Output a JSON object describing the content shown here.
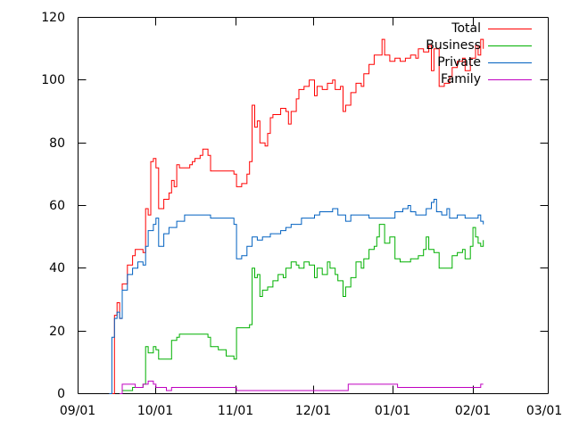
{
  "chart_data": {
    "type": "line",
    "title": "",
    "xlabel": "",
    "ylabel": "",
    "x_ticks": [
      "09/01",
      "10/01",
      "11/01",
      "12/01",
      "01/01",
      "02/01",
      "03/01"
    ],
    "x_tick_dates": [
      "2008-09-01",
      "2008-10-01",
      "2008-11-01",
      "2008-12-01",
      "2009-01-01",
      "2009-02-01",
      "2009-03-01"
    ],
    "xlim": [
      "2008-09-01",
      "2009-03-01"
    ],
    "ylim": [
      0,
      120
    ],
    "y_ticks": [
      0,
      20,
      40,
      60,
      80,
      100,
      120
    ],
    "grid": false,
    "legend_position": "top-right",
    "series": [
      {
        "name": "Total",
        "color": "#ff0000",
        "points": [
          [
            "2008-09-13",
            0
          ],
          [
            "2008-09-15",
            25
          ],
          [
            "2008-09-16",
            29
          ],
          [
            "2008-09-17",
            24
          ],
          [
            "2008-09-18",
            35
          ],
          [
            "2008-09-20",
            41
          ],
          [
            "2008-09-22",
            44
          ],
          [
            "2008-09-23",
            46
          ],
          [
            "2008-09-26",
            45
          ],
          [
            "2008-09-27",
            59
          ],
          [
            "2008-09-28",
            57
          ],
          [
            "2008-09-29",
            74
          ],
          [
            "2008-09-30",
            75
          ],
          [
            "2008-10-01",
            72
          ],
          [
            "2008-10-02",
            59
          ],
          [
            "2008-10-04",
            62
          ],
          [
            "2008-10-06",
            64
          ],
          [
            "2008-10-07",
            68
          ],
          [
            "2008-10-08",
            66
          ],
          [
            "2008-10-09",
            73
          ],
          [
            "2008-10-10",
            72
          ],
          [
            "2008-10-14",
            73
          ],
          [
            "2008-10-15",
            74
          ],
          [
            "2008-10-16",
            75
          ],
          [
            "2008-10-18",
            76
          ],
          [
            "2008-10-19",
            78
          ],
          [
            "2008-10-21",
            76
          ],
          [
            "2008-10-22",
            71
          ],
          [
            "2008-10-31",
            70
          ],
          [
            "2008-11-01",
            66
          ],
          [
            "2008-11-03",
            67
          ],
          [
            "2008-11-05",
            70
          ],
          [
            "2008-11-06",
            74
          ],
          [
            "2008-11-07",
            92
          ],
          [
            "2008-11-08",
            85
          ],
          [
            "2008-11-09",
            87
          ],
          [
            "2008-11-10",
            80
          ],
          [
            "2008-11-11",
            80
          ],
          [
            "2008-11-12",
            79
          ],
          [
            "2008-11-13",
            83
          ],
          [
            "2008-11-14",
            88
          ],
          [
            "2008-11-15",
            89
          ],
          [
            "2008-11-17",
            89
          ],
          [
            "2008-11-18",
            91
          ],
          [
            "2008-11-20",
            90
          ],
          [
            "2008-11-21",
            86
          ],
          [
            "2008-11-22",
            90
          ],
          [
            "2008-11-24",
            94
          ],
          [
            "2008-11-25",
            97
          ],
          [
            "2008-11-27",
            98
          ],
          [
            "2008-11-29",
            100
          ],
          [
            "2008-12-01",
            95
          ],
          [
            "2008-12-02",
            98
          ],
          [
            "2008-12-04",
            97
          ],
          [
            "2008-12-06",
            99
          ],
          [
            "2008-12-08",
            100
          ],
          [
            "2008-12-09",
            97
          ],
          [
            "2008-12-11",
            98
          ],
          [
            "2008-12-12",
            90
          ],
          [
            "2008-12-13",
            92
          ],
          [
            "2008-12-15",
            96
          ],
          [
            "2008-12-17",
            99
          ],
          [
            "2008-12-19",
            98
          ],
          [
            "2008-12-20",
            102
          ],
          [
            "2008-12-22",
            105
          ],
          [
            "2008-12-24",
            108
          ],
          [
            "2008-12-26",
            108
          ],
          [
            "2008-12-27",
            113
          ],
          [
            "2008-12-28",
            108
          ],
          [
            "2008-12-30",
            106
          ],
          [
            "2009-01-01",
            107
          ],
          [
            "2009-01-03",
            106
          ],
          [
            "2009-01-05",
            107
          ],
          [
            "2009-01-07",
            108
          ],
          [
            "2009-01-09",
            107
          ],
          [
            "2009-01-10",
            110
          ],
          [
            "2009-01-12",
            109
          ],
          [
            "2009-01-14",
            111
          ],
          [
            "2009-01-15",
            103
          ],
          [
            "2009-01-16",
            110
          ],
          [
            "2009-01-18",
            98
          ],
          [
            "2009-01-20",
            99
          ],
          [
            "2009-01-22",
            101
          ],
          [
            "2009-01-23",
            104
          ],
          [
            "2009-01-25",
            106
          ],
          [
            "2009-01-27",
            107
          ],
          [
            "2009-01-28",
            103
          ],
          [
            "2009-01-30",
            107
          ],
          [
            "2009-02-01",
            111
          ],
          [
            "2009-02-02",
            108
          ],
          [
            "2009-02-03",
            113
          ],
          [
            "2009-02-04",
            110
          ]
        ]
      },
      {
        "name": "Business",
        "color": "#00b000",
        "points": [
          [
            "2008-09-17",
            0
          ],
          [
            "2008-09-18",
            1
          ],
          [
            "2008-09-20",
            1
          ],
          [
            "2008-09-22",
            2
          ],
          [
            "2008-09-26",
            3
          ],
          [
            "2008-09-27",
            15
          ],
          [
            "2008-09-28",
            13
          ],
          [
            "2008-09-30",
            15
          ],
          [
            "2008-10-01",
            14
          ],
          [
            "2008-10-02",
            11
          ],
          [
            "2008-10-06",
            11
          ],
          [
            "2008-10-07",
            17
          ],
          [
            "2008-10-09",
            18
          ],
          [
            "2008-10-10",
            19
          ],
          [
            "2008-10-21",
            18
          ],
          [
            "2008-10-22",
            15
          ],
          [
            "2008-10-25",
            14
          ],
          [
            "2008-10-28",
            12
          ],
          [
            "2008-10-31",
            11
          ],
          [
            "2008-11-01",
            21
          ],
          [
            "2008-11-06",
            22
          ],
          [
            "2008-11-07",
            40
          ],
          [
            "2008-11-08",
            37
          ],
          [
            "2008-11-09",
            38
          ],
          [
            "2008-11-10",
            31
          ],
          [
            "2008-11-11",
            33
          ],
          [
            "2008-11-13",
            34
          ],
          [
            "2008-11-15",
            36
          ],
          [
            "2008-11-17",
            38
          ],
          [
            "2008-11-19",
            37
          ],
          [
            "2008-11-20",
            40
          ],
          [
            "2008-11-22",
            42
          ],
          [
            "2008-11-24",
            41
          ],
          [
            "2008-11-25",
            40
          ],
          [
            "2008-11-27",
            42
          ],
          [
            "2008-11-29",
            41
          ],
          [
            "2008-12-01",
            37
          ],
          [
            "2008-12-02",
            40
          ],
          [
            "2008-12-04",
            38
          ],
          [
            "2008-12-06",
            42
          ],
          [
            "2008-12-07",
            40
          ],
          [
            "2008-12-09",
            38
          ],
          [
            "2008-12-10",
            36
          ],
          [
            "2008-12-12",
            31
          ],
          [
            "2008-12-13",
            34
          ],
          [
            "2008-12-15",
            37
          ],
          [
            "2008-12-17",
            42
          ],
          [
            "2008-12-19",
            40
          ],
          [
            "2008-12-20",
            43
          ],
          [
            "2008-12-22",
            46
          ],
          [
            "2008-12-24",
            47
          ],
          [
            "2008-12-25",
            50
          ],
          [
            "2008-12-26",
            54
          ],
          [
            "2008-12-28",
            48
          ],
          [
            "2008-12-30",
            50
          ],
          [
            "2009-01-01",
            43
          ],
          [
            "2009-01-03",
            42
          ],
          [
            "2009-01-07",
            43
          ],
          [
            "2009-01-10",
            44
          ],
          [
            "2009-01-12",
            46
          ],
          [
            "2009-01-13",
            50
          ],
          [
            "2009-01-14",
            46
          ],
          [
            "2009-01-16",
            45
          ],
          [
            "2009-01-18",
            40
          ],
          [
            "2009-01-21",
            40
          ],
          [
            "2009-01-23",
            44
          ],
          [
            "2009-01-25",
            45
          ],
          [
            "2009-01-27",
            46
          ],
          [
            "2009-01-28",
            43
          ],
          [
            "2009-01-30",
            47
          ],
          [
            "2009-01-31",
            53
          ],
          [
            "2009-02-01",
            50
          ],
          [
            "2009-02-02",
            48
          ],
          [
            "2009-02-03",
            47
          ],
          [
            "2009-02-04",
            49
          ]
        ]
      },
      {
        "name": "Private",
        "color": "#0060c0",
        "points": [
          [
            "2008-09-13",
            0
          ],
          [
            "2008-09-14",
            18
          ],
          [
            "2008-09-15",
            24
          ],
          [
            "2008-09-16",
            26
          ],
          [
            "2008-09-17",
            24
          ],
          [
            "2008-09-18",
            33
          ],
          [
            "2008-09-20",
            38
          ],
          [
            "2008-09-22",
            40
          ],
          [
            "2008-09-24",
            42
          ],
          [
            "2008-09-26",
            41
          ],
          [
            "2008-09-27",
            47
          ],
          [
            "2008-09-28",
            52
          ],
          [
            "2008-09-30",
            54
          ],
          [
            "2008-10-01",
            56
          ],
          [
            "2008-10-02",
            47
          ],
          [
            "2008-10-04",
            51
          ],
          [
            "2008-10-06",
            53
          ],
          [
            "2008-10-08",
            53
          ],
          [
            "2008-10-09",
            55
          ],
          [
            "2008-10-11",
            55
          ],
          [
            "2008-10-12",
            57
          ],
          [
            "2008-10-22",
            56
          ],
          [
            "2008-10-31",
            54
          ],
          [
            "2008-11-01",
            43
          ],
          [
            "2008-11-03",
            44
          ],
          [
            "2008-11-05",
            47
          ],
          [
            "2008-11-07",
            50
          ],
          [
            "2008-11-09",
            49
          ],
          [
            "2008-11-11",
            50
          ],
          [
            "2008-11-14",
            51
          ],
          [
            "2008-11-16",
            51
          ],
          [
            "2008-11-18",
            52
          ],
          [
            "2008-11-20",
            53
          ],
          [
            "2008-11-22",
            54
          ],
          [
            "2008-11-24",
            54
          ],
          [
            "2008-11-26",
            56
          ],
          [
            "2008-11-28",
            56
          ],
          [
            "2008-12-01",
            57
          ],
          [
            "2008-12-03",
            58
          ],
          [
            "2008-12-06",
            58
          ],
          [
            "2008-12-08",
            59
          ],
          [
            "2008-12-10",
            57
          ],
          [
            "2008-12-13",
            55
          ],
          [
            "2008-12-15",
            57
          ],
          [
            "2008-12-20",
            57
          ],
          [
            "2008-12-22",
            56
          ],
          [
            "2008-12-28",
            56
          ],
          [
            "2009-01-01",
            58
          ],
          [
            "2009-01-04",
            59
          ],
          [
            "2009-01-06",
            60
          ],
          [
            "2009-01-07",
            58
          ],
          [
            "2009-01-09",
            57
          ],
          [
            "2009-01-11",
            57
          ],
          [
            "2009-01-13",
            59
          ],
          [
            "2009-01-15",
            61
          ],
          [
            "2009-01-16",
            62
          ],
          [
            "2009-01-17",
            58
          ],
          [
            "2009-01-19",
            57
          ],
          [
            "2009-01-21",
            59
          ],
          [
            "2009-01-22",
            56
          ],
          [
            "2009-01-25",
            57
          ],
          [
            "2009-01-28",
            56
          ],
          [
            "2009-02-01",
            56
          ],
          [
            "2009-02-02",
            57
          ],
          [
            "2009-02-03",
            55
          ],
          [
            "2009-02-04",
            54
          ]
        ]
      },
      {
        "name": "Family",
        "color": "#c000c0",
        "points": [
          [
            "2008-09-17",
            0
          ],
          [
            "2008-09-18",
            3
          ],
          [
            "2008-09-21",
            3
          ],
          [
            "2008-09-23",
            2
          ],
          [
            "2008-09-26",
            3
          ],
          [
            "2008-09-28",
            4
          ],
          [
            "2008-09-30",
            3
          ],
          [
            "2008-10-01",
            2
          ],
          [
            "2008-10-03",
            2
          ],
          [
            "2008-10-05",
            1
          ],
          [
            "2008-10-07",
            2
          ],
          [
            "2008-11-01",
            1
          ],
          [
            "2008-12-08",
            1
          ],
          [
            "2008-12-14",
            3
          ],
          [
            "2009-01-01",
            3
          ],
          [
            "2009-01-02",
            2
          ],
          [
            "2009-02-02",
            2
          ],
          [
            "2009-02-03",
            3
          ],
          [
            "2009-02-04",
            3
          ]
        ]
      }
    ]
  }
}
